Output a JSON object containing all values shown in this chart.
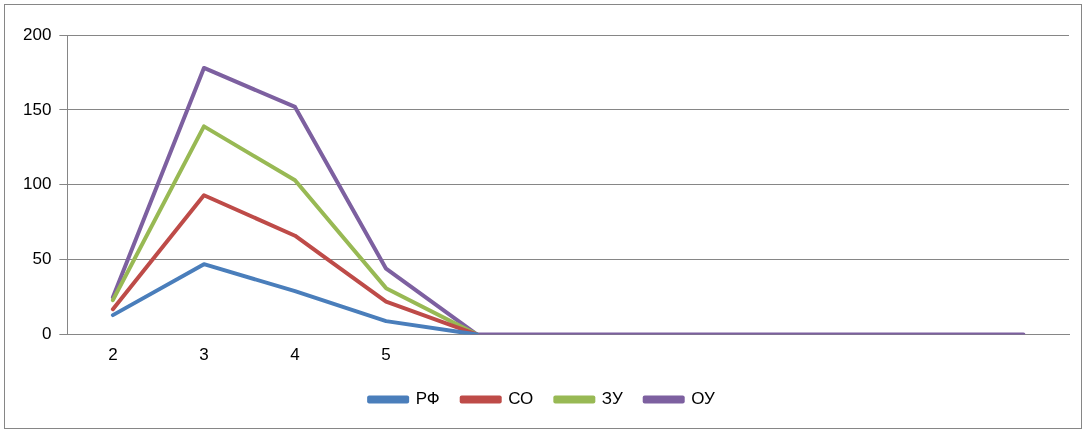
{
  "chart_data": {
    "type": "line",
    "categories": [
      "2",
      "3",
      "4",
      "5",
      null,
      null,
      null,
      null,
      null,
      null,
      null
    ],
    "series": [
      {
        "name": "РФ",
        "color": "#4a7ebb",
        "values": [
          13,
          47,
          29,
          9,
          0,
          null,
          null,
          null,
          null,
          null,
          null
        ]
      },
      {
        "name": "СО",
        "color": "#be4b48",
        "values": [
          17,
          93,
          66,
          22,
          0,
          null,
          null,
          null,
          null,
          null,
          null
        ]
      },
      {
        "name": "ЗУ",
        "color": "#98b954",
        "values": [
          23,
          139,
          103,
          31,
          0,
          null,
          null,
          null,
          null,
          null,
          null
        ]
      },
      {
        "name": "ОУ",
        "color": "#7d60a0",
        "values": [
          25,
          178,
          152,
          44,
          0,
          0,
          0,
          0,
          0,
          0,
          0
        ]
      }
    ],
    "ylim": [
      0,
      200
    ],
    "yticks": [
      0,
      50,
      100,
      150,
      200
    ],
    "grid": "y",
    "legend": "bottom",
    "marker": "none",
    "line_style": "solid"
  }
}
